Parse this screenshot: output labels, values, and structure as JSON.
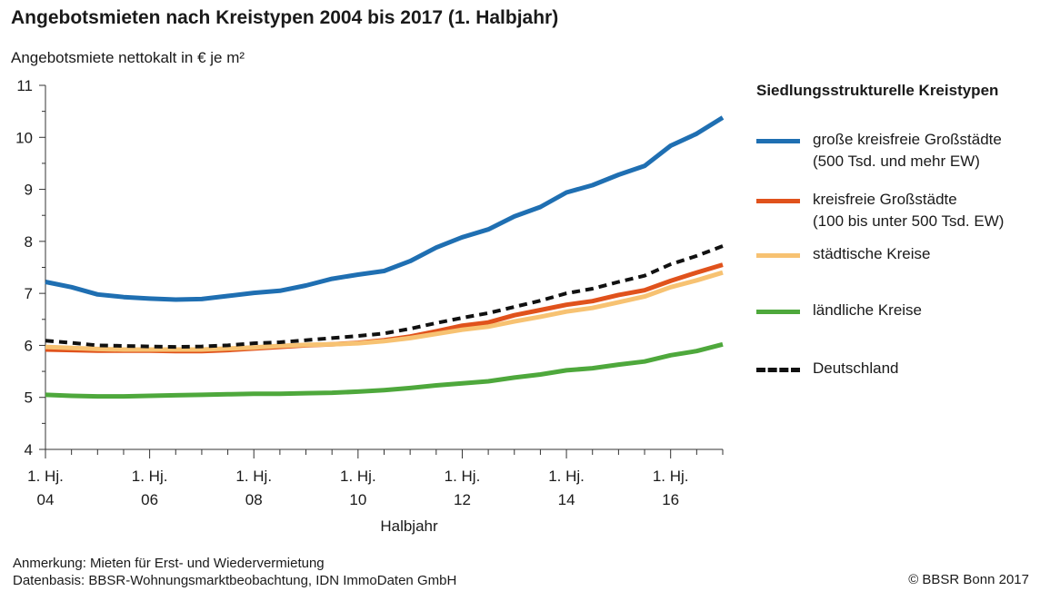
{
  "title": "Angebotsmieten nach Kreistypen 2004 bis 2017 (1. Halbjahr)",
  "notes": {
    "anmerkung": "Anmerkung: Mieten für Erst- und Wiedervermietung",
    "datenbasis": "Datenbasis: BBSR-Wohnungsmarktbeobachtung, IDN ImmoDaten GmbH",
    "copyright": "© BBSR Bonn 2017"
  },
  "legend_title": "Siedlungsstrukturelle Kreistypen",
  "chart_data": {
    "type": "line",
    "title": "Angebotsmieten nach Kreistypen 2004 bis 2017 (1. Halbjahr)",
    "ylabel": "Angebotsmiete nettokalt in € je m²",
    "xlabel": "Halbjahr",
    "ylim": [
      4,
      11
    ],
    "yticks": [
      4,
      5,
      6,
      7,
      8,
      9,
      10,
      11
    ],
    "x_tick_labels": [
      "1. Hj. 04",
      "1. Hj. 06",
      "1. Hj. 08",
      "1. Hj. 10",
      "1. Hj. 12",
      "1. Hj. 14",
      "1. Hj. 16"
    ],
    "x": [
      "1. Hj. 04",
      "2. Hj. 04",
      "1. Hj. 05",
      "2. Hj. 05",
      "1. Hj. 06",
      "2. Hj. 06",
      "1. Hj. 07",
      "2. Hj. 07",
      "1. Hj. 08",
      "2. Hj. 08",
      "1. Hj. 09",
      "2. Hj. 09",
      "1. Hj. 10",
      "2. Hj. 10",
      "1. Hj. 11",
      "2. Hj. 11",
      "1. Hj. 12",
      "2. Hj. 12",
      "1. Hj. 13",
      "2. Hj. 13",
      "1. Hj. 14",
      "2. Hj. 14",
      "1. Hj. 15",
      "2. Hj. 15",
      "1. Hj. 16",
      "2. Hj. 16",
      "1. Hj. 17"
    ],
    "grid": false,
    "legend_position": "right",
    "series": [
      {
        "name": "große kreisfreie Großstädte\n(500 Tsd. und mehr EW)",
        "color": "#1f6fb2",
        "dashed": false,
        "values": [
          7.22,
          7.12,
          6.98,
          6.93,
          6.9,
          6.88,
          6.89,
          6.95,
          7.01,
          7.05,
          7.15,
          7.28,
          7.36,
          7.43,
          7.62,
          7.88,
          8.08,
          8.23,
          8.48,
          8.66,
          8.94,
          9.08,
          9.28,
          9.45,
          9.84,
          10.07,
          10.38
        ]
      },
      {
        "name": "kreisfreie Großstädte\n(100 bis unter 500 Tsd. EW)",
        "color": "#e0521c",
        "dashed": false,
        "values": [
          5.92,
          5.91,
          5.9,
          5.9,
          5.9,
          5.89,
          5.89,
          5.91,
          5.94,
          5.97,
          6.0,
          6.02,
          6.05,
          6.1,
          6.17,
          6.27,
          6.38,
          6.44,
          6.58,
          6.68,
          6.78,
          6.85,
          6.97,
          7.06,
          7.24,
          7.4,
          7.55
        ]
      },
      {
        "name": "städtische Kreise",
        "color": "#f7c272",
        "dashed": false,
        "values": [
          5.97,
          5.95,
          5.93,
          5.92,
          5.92,
          5.92,
          5.92,
          5.94,
          5.96,
          5.99,
          6.01,
          6.02,
          6.04,
          6.08,
          6.14,
          6.22,
          6.3,
          6.36,
          6.46,
          6.55,
          6.65,
          6.72,
          6.83,
          6.94,
          7.12,
          7.25,
          7.4
        ]
      },
      {
        "name": "ländliche Kreise",
        "color": "#4ea83c",
        "dashed": false,
        "values": [
          5.05,
          5.03,
          5.02,
          5.02,
          5.03,
          5.04,
          5.05,
          5.06,
          5.07,
          5.07,
          5.08,
          5.09,
          5.11,
          5.14,
          5.18,
          5.23,
          5.27,
          5.31,
          5.38,
          5.44,
          5.52,
          5.56,
          5.63,
          5.69,
          5.81,
          5.89,
          6.02
        ]
      },
      {
        "name": "Deutschland",
        "color": "#111111",
        "dashed": true,
        "values": [
          6.09,
          6.05,
          6.0,
          5.99,
          5.98,
          5.97,
          5.98,
          6.0,
          6.04,
          6.06,
          6.1,
          6.14,
          6.18,
          6.23,
          6.32,
          6.43,
          6.53,
          6.62,
          6.74,
          6.86,
          7.0,
          7.09,
          7.22,
          7.34,
          7.56,
          7.72,
          7.91
        ]
      }
    ]
  }
}
